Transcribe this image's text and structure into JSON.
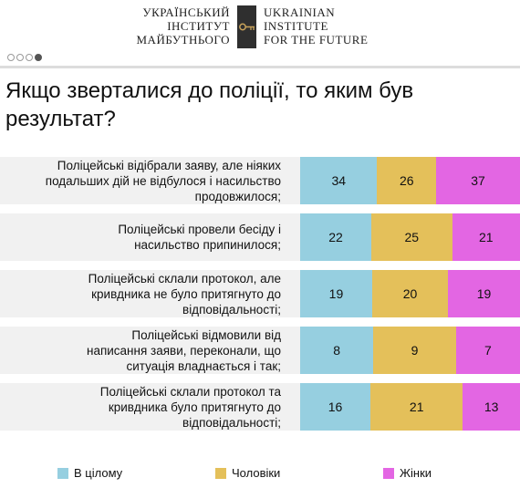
{
  "header": {
    "logo_left": [
      "Український",
      "Інститут",
      "Майбутнього"
    ],
    "logo_right": [
      "Ukrainian",
      "Institute",
      "for the Future"
    ]
  },
  "pager": {
    "count": 4,
    "active": 4
  },
  "chart_data": {
    "type": "bar",
    "orientation": "horizontal",
    "stacked": true,
    "title": "Якщо зверталися до поліції, то яким був результат?",
    "categories": [
      "Поліцейські відібрали заяву, але ніяких подальших дій не відбулося і насильство продовжилося;",
      "Поліцейські провели бесіду і насильство припинилося;",
      "Поліцейські склали протокол, але кривдника не було притягнуто до відповідальності;",
      "Поліцейські відмовили від написання заяви, переконали, що ситуація владнається і так;",
      "Поліцейські склали протокол та кривдника було притягнуто до відповідальності;"
    ],
    "category_lines": [
      [
        "Поліцейські відібрали заяву, але ніяких",
        "подальших дій не відбулося і насильство",
        "продовжилося;"
      ],
      [
        "Поліцейські провели бесіду і",
        "насильство припинилося;"
      ],
      [
        "Поліцейські склали протокол, але",
        "кривдника не було притягнуто до",
        "відповідальності;"
      ],
      [
        "Поліцейські відмовили від",
        "написання заяви, переконали, що",
        "ситуація владнається і так;"
      ],
      [
        "Поліцейські склали протокол та",
        "кривдника було притягнуто до",
        "відповідальності;"
      ]
    ],
    "series": [
      {
        "name": "В цілому",
        "color": "#96cfe0",
        "values": [
          34,
          22,
          19,
          8,
          16
        ]
      },
      {
        "name": "Чоловіки",
        "color": "#e4c05a",
        "values": [
          26,
          25,
          20,
          9,
          21
        ]
      },
      {
        "name": "Жінки",
        "color": "#e366e3",
        "values": [
          37,
          21,
          19,
          7,
          13
        ]
      }
    ],
    "legend_position": "bottom",
    "grid": false
  }
}
